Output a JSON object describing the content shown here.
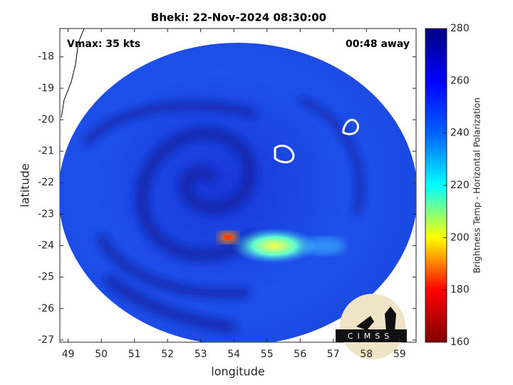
{
  "chart_data": {
    "type": "image",
    "title": "Bheki: 22-Nov-2024 08:30:00",
    "annotations": [
      "Vmax: 35 kts",
      "00:48 away"
    ],
    "xlabel": "longitude",
    "ylabel": "latitude",
    "xlim": [
      48.75,
      59.5
    ],
    "xticks": [
      49,
      50,
      51,
      52,
      53,
      54,
      55,
      56,
      57,
      58,
      59
    ],
    "ylim": [
      -27.07,
      -17.1
    ],
    "yticks": [
      -18,
      -19,
      -20,
      -21,
      -22,
      -23,
      -24,
      -25,
      -26,
      -27
    ],
    "colorbar": {
      "label": "Brightness Temp - Horizontal Polarization",
      "lim": [
        160,
        280
      ],
      "ticks": [
        160,
        180,
        200,
        220,
        240,
        260,
        280
      ],
      "colormap": [
        "#800000",
        "#ff0000",
        "#ffff00",
        "#00ffff",
        "#0060ff",
        "#0000ff",
        "#000080"
      ]
    },
    "logo_text": "CIMSS"
  }
}
